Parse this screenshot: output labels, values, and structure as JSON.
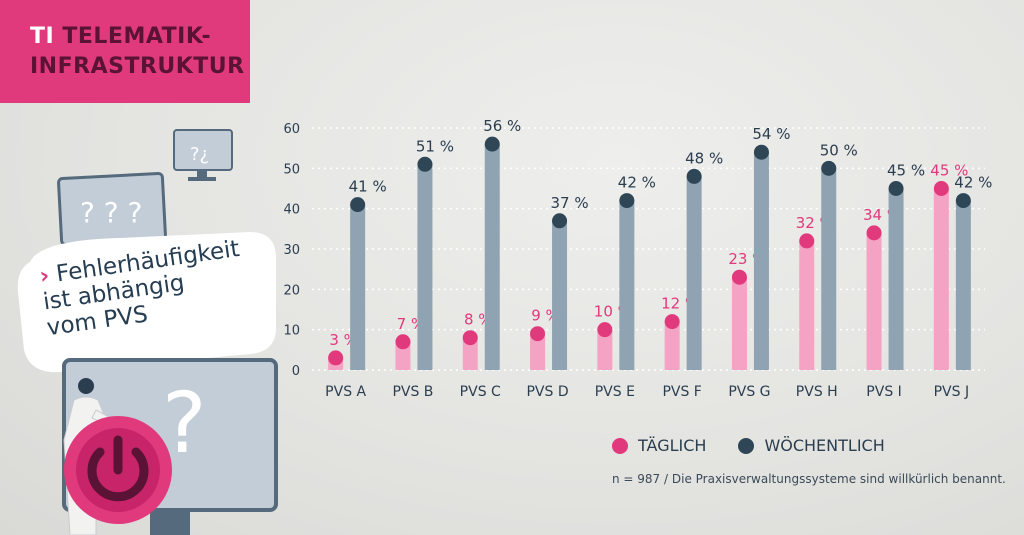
{
  "badge": {
    "prefix": "TI",
    "line1": "TELEMATIK-",
    "line2": "INFRASTRUKTUR"
  },
  "callout": {
    "chevron": "›",
    "line1": "Fehlerhäufigkeit",
    "line2": "ist abhängig",
    "line3": "vom PVS"
  },
  "illustration": {
    "small_monitor_mark": "?¿",
    "mid_monitor_mark": "? ? ?",
    "big_monitor_mark": "?"
  },
  "footnote": "n = 987 / Die Praxisverwaltungssysteme sind willkürlich benannt.",
  "colors": {
    "accent": "#e03a7d",
    "daily": "#f4a3c4",
    "daily_dot": "#e03a7d",
    "weekly": "#8fa3b3",
    "weekly_dot": "#2f4656",
    "text": "#2b3e50"
  },
  "chart_data": {
    "type": "bar",
    "categories": [
      "PVS A",
      "PVS B",
      "PVS C",
      "PVS D",
      "PVS E",
      "PVS F",
      "PVS G",
      "PVS H",
      "PVS I",
      "PVS J"
    ],
    "series": [
      {
        "name": "TÄGLICH",
        "values": [
          3,
          7,
          8,
          9,
          10,
          12,
          23,
          32,
          34,
          45
        ],
        "labels": [
          "3 %",
          "7 %",
          "8 %",
          "9 %",
          "10 %",
          "12 %",
          "23 %",
          "32 %",
          "34 %",
          "45 %"
        ]
      },
      {
        "name": "WÖCHENTLICH",
        "values": [
          41,
          51,
          56,
          37,
          42,
          48,
          54,
          50,
          45,
          42
        ],
        "labels": [
          "41 %",
          "51 %",
          "56 %",
          "37 %",
          "42 %",
          "48 %",
          "54 %",
          "50 %",
          "45 %",
          "42 %"
        ]
      }
    ],
    "yticks": [
      "0",
      "10",
      "20",
      "30",
      "40",
      "50",
      "60"
    ],
    "ylim": [
      0,
      60
    ],
    "grid": true,
    "legend_position": "bottom-right"
  }
}
